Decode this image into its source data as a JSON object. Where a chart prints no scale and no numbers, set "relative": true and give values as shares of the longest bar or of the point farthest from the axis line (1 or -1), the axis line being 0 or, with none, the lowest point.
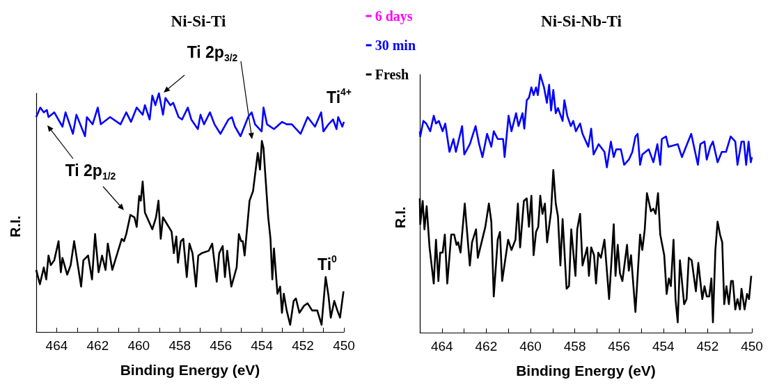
{
  "chart_data": [
    {
      "type": "line",
      "title": "Ni-Si-Ti",
      "xlabel": "Binding Energy (eV)",
      "ylabel": "R.I.",
      "relative": true,
      "tick_labels": "x",
      "legend": "top right",
      "xlim": [
        465,
        450
      ],
      "xticks": [
        {
          "value": 465,
          "label": null
        },
        464,
        {
          "value": 463,
          "label": null
        },
        462,
        {
          "value": 461,
          "label": null
        },
        460,
        {
          "value": 459,
          "label": null
        },
        458,
        {
          "value": 457,
          "label": null
        },
        456,
        {
          "value": 455,
          "label": null
        },
        454,
        {
          "value": 453,
          "label": null
        },
        452,
        {
          "value": 451,
          "label": null
        },
        450
      ],
      "annotations": [
        "Ti 2p$_{3/2}$",
        "Ti 2p$_{1/2}$",
        "Ti$^{4+}$",
        "Ti$^{0}$"
      ],
      "series": [
        {
          "name": "6 days",
          "color": "#ff00ff"
        },
        {
          "name": "30 min",
          "color": "#0000ff",
          "x": [
            465,
            464.8,
            464.63,
            464.48,
            464.4,
            464.12,
            463.72,
            463.57,
            463.21,
            463.04,
            462.62,
            462.53,
            462.25,
            462,
            461.85,
            461.4,
            460.89,
            460.61,
            460.38,
            460.1,
            459.81,
            459.7,
            459.47,
            459.34,
            459.19,
            459.02,
            458.82,
            458.7,
            458.46,
            458.32,
            458.06,
            457.89,
            457.61,
            457.44,
            457.12,
            456.99,
            456.82,
            456.53,
            456.31,
            456.02,
            455.63,
            455.46,
            455.31,
            455.04,
            454.67,
            454.5,
            454.33,
            454.01,
            453.92,
            453.75,
            453.41,
            453.02,
            452.79,
            452.54,
            452.11,
            451.77,
            451.41,
            451.11,
            451,
            450.75,
            450.53,
            450.36,
            450.28,
            450.08,
            450
          ],
          "values": [
            0.9,
            0.94,
            0.92,
            0.93,
            0.9,
            0.92,
            0.86,
            0.92,
            0.83,
            0.91,
            0.82,
            0.9,
            0.87,
            0.94,
            0.87,
            0.9,
            0.87,
            0.92,
            0.88,
            0.94,
            0.91,
            0.95,
            0.89,
            0.99,
            0.95,
            1,
            0.91,
            0.98,
            0.95,
            0.96,
            0.9,
            0.89,
            0.94,
            0.89,
            0.85,
            0.91,
            0.87,
            0.92,
            0.87,
            0.83,
            0.89,
            0.9,
            0.86,
            0.82,
            0.9,
            0.92,
            0.87,
            0.84,
            0.94,
            0.87,
            0.85,
            0.88,
            0.87,
            0.87,
            0.83,
            0.9,
            0.86,
            0.92,
            0.84,
            0.87,
            0.89,
            0.85,
            0.9,
            0.86,
            0.88
          ]
        },
        {
          "name": "Fresh",
          "color": "#000000",
          "x": [
            465,
            464.82,
            464.63,
            464.51,
            464.4,
            464.29,
            464.12,
            463.91,
            463.8,
            463.72,
            463.49,
            463.32,
            463.15,
            462.81,
            462.7,
            462.47,
            462.28,
            462.13,
            461.96,
            461.79,
            461.62,
            461.51,
            461.29,
            460.83,
            460.72,
            460.61,
            460.41,
            460.21,
            460.1,
            459.98,
            459.9,
            459.81,
            459.7,
            459.34,
            459.16,
            459.04,
            458.93,
            458.82,
            458.68,
            458.4,
            458.29,
            458.17,
            458.09,
            457.95,
            457.83,
            457.66,
            457.53,
            457.38,
            457.21,
            457.1,
            456.93,
            456.59,
            456.42,
            456.2,
            456.08,
            455.91,
            455.8,
            455.69,
            455.49,
            455.23,
            455.12,
            455.01,
            454.93,
            454.84,
            454.6,
            454.43,
            454.2,
            454.09,
            454,
            453.92,
            453.69,
            453.58,
            453.49,
            453.41,
            453.24,
            453.11,
            453.02,
            452.93,
            452.79,
            452.62,
            452.45,
            452.34,
            452.17,
            451.94,
            451.77,
            451.55,
            451.3,
            451.09,
            450.89,
            450.75,
            450.64,
            450.47,
            450.32,
            450.19,
            450.02
          ],
          "values": [
            0.26,
            0.2,
            0.27,
            0.22,
            0.32,
            0.28,
            0.3,
            0.38,
            0.25,
            0.31,
            0.24,
            0.28,
            0.38,
            0.19,
            0.3,
            0.32,
            0.22,
            0.41,
            0.25,
            0.32,
            0.26,
            0.37,
            0.26,
            0.39,
            0.38,
            0.41,
            0.49,
            0.48,
            0.44,
            0.57,
            0.55,
            0.63,
            0.5,
            0.43,
            0.48,
            0.55,
            0.39,
            0.48,
            0.46,
            0.42,
            0.33,
            0.4,
            0.29,
            0.38,
            0.39,
            0.23,
            0.37,
            0.33,
            0.19,
            0.32,
            0.33,
            0.34,
            0.37,
            0.21,
            0.33,
            0.36,
            0.23,
            0.34,
            0.19,
            0.27,
            0.41,
            0.38,
            0.38,
            0.32,
            0.55,
            0.59,
            0.75,
            0.68,
            0.8,
            0.77,
            0.48,
            0.39,
            0.22,
            0.35,
            0.16,
            0.19,
            0.08,
            0.16,
            0.09,
            0.03,
            0.13,
            0.14,
            0.08,
            0.11,
            0.12,
            0.09,
            0.09,
            0.03,
            0.23,
            0.15,
            0.06,
            0.13,
            0.09,
            0.06,
            0.17
          ]
        }
      ]
    },
    {
      "type": "line",
      "title": "Ni-Si-Nb-Ti",
      "xlabel": "Binding Energy (eV)",
      "ylabel": "R.I.",
      "relative": true,
      "tick_labels": "x",
      "xlim": [
        465,
        450
      ],
      "xticks": [
        {
          "value": 465,
          "label": null
        },
        464,
        {
          "value": 463,
          "label": null
        },
        462,
        {
          "value": 461,
          "label": null
        },
        460,
        {
          "value": 459,
          "label": null
        },
        458,
        {
          "value": 457,
          "label": null
        },
        456,
        {
          "value": 455,
          "label": null
        },
        454,
        {
          "value": 453,
          "label": null
        },
        452,
        {
          "value": 451,
          "label": null
        },
        450
      ],
      "series": [
        {
          "color": "#0000ff",
          "x": [
            465,
            464.98,
            464.84,
            464.71,
            464.53,
            464.37,
            464.27,
            464.14,
            463.97,
            463.85,
            463.66,
            463.48,
            463.37,
            463.09,
            462.99,
            462.74,
            462.48,
            462.32,
            462.17,
            461.96,
            461.77,
            461.66,
            461.48,
            461.24,
            461.17,
            460.99,
            460.86,
            460.65,
            460.54,
            460.36,
            460.28,
            460.17,
            460.07,
            459.96,
            459.86,
            459.75,
            459.67,
            459.56,
            459.39,
            459.26,
            459.16,
            459.07,
            458.97,
            458.86,
            458.76,
            458.55,
            458.47,
            458.34,
            458.18,
            458.07,
            457.95,
            457.76,
            457.65,
            457.39,
            457.26,
            457.15,
            456.92,
            456.66,
            456.55,
            456.37,
            456.24,
            456.13,
            455.92,
            455.77,
            455.56,
            455.4,
            455.26,
            455.16,
            455.05,
            454.95,
            454.66,
            454.45,
            454.27,
            454.14,
            454.07,
            453.88,
            453.77,
            453.35,
            453.16,
            452.93,
            452.74,
            452.44,
            452.33,
            452.14,
            452.04,
            451.88,
            451.76,
            451.55,
            451.36,
            451.17,
            450.96,
            450.75,
            450.65,
            450.47,
            450.36,
            450.26,
            450.15,
            450.05,
            450
          ],
          "values": [
            0.78,
            0.76,
            0.82,
            0.81,
            0.78,
            0.84,
            0.81,
            0.82,
            0.78,
            0.81,
            0.7,
            0.75,
            0.7,
            0.8,
            0.69,
            0.73,
            0.8,
            0.73,
            0.68,
            0.77,
            0.72,
            0.78,
            0.75,
            0.75,
            0.68,
            0.84,
            0.78,
            0.85,
            0.8,
            0.85,
            0.79,
            0.9,
            0.91,
            0.95,
            0.92,
            0.95,
            0.92,
            1,
            0.95,
            0.89,
            0.96,
            0.86,
            0.94,
            0.85,
            0.87,
            0.82,
            0.9,
            0.84,
            0.8,
            0.82,
            0.78,
            0.81,
            0.77,
            0.72,
            0.79,
            0.69,
            0.73,
            0.7,
            0.64,
            0.74,
            0.68,
            0.71,
            0.71,
            0.65,
            0.67,
            0.7,
            0.76,
            0.77,
            0.65,
            0.69,
            0.71,
            0.66,
            0.73,
            0.65,
            0.75,
            0.76,
            0.72,
            0.73,
            0.68,
            0.73,
            0.77,
            0.65,
            0.73,
            0.74,
            0.67,
            0.72,
            0.74,
            0.66,
            0.7,
            0.7,
            0.76,
            0.74,
            0.65,
            0.74,
            0.74,
            0.65,
            0.74,
            0.66,
            0.68
          ]
        },
        {
          "color": "#000000",
          "x": [
            465,
            464.98,
            464.87,
            464.79,
            464.69,
            464.56,
            464.37,
            464.27,
            464.16,
            464.08,
            463.97,
            463.87,
            463.76,
            463.58,
            463.45,
            463.34,
            463.27,
            463.16,
            462.97,
            462.74,
            462.64,
            462.46,
            462.38,
            462.04,
            461.88,
            461.77,
            461.66,
            461.48,
            461.38,
            461.28,
            461.01,
            460.86,
            460.68,
            460.57,
            460.47,
            460.3,
            460.17,
            460.07,
            459.96,
            459.86,
            459.75,
            459.65,
            459.56,
            459.46,
            459.35,
            459.25,
            459.07,
            458.97,
            458.86,
            458.76,
            458.65,
            458.55,
            458.37,
            458.26,
            458.16,
            457.97,
            457.89,
            457.76,
            457.65,
            457.44,
            457.36,
            457.26,
            457.13,
            457.04,
            456.94,
            456.82,
            456.66,
            456.45,
            456.24,
            456.16,
            456.06,
            455.96,
            455.85,
            455.64,
            455.56,
            455.46,
            455.26,
            455.05,
            454.95,
            454.84,
            454.74,
            454.56,
            454.45,
            454.35,
            454.24,
            454.14,
            453.96,
            453.85,
            453.75,
            453.66,
            453.54,
            453.45,
            453.35,
            453.25,
            453.06,
            452.95,
            452.85,
            452.72,
            452.53,
            452.42,
            452.24,
            452.14,
            452.04,
            451.93,
            451.83,
            451.76,
            451.65,
            451.55,
            451.44,
            451.34,
            451.25,
            451.15,
            451.04,
            450.94,
            450.86,
            450.75,
            450.65,
            450.54,
            450.47,
            450.33,
            450.22,
            450.13,
            450.03
          ],
          "values": [
            0.52,
            0.42,
            0.51,
            0.4,
            0.49,
            0.33,
            0.19,
            0.36,
            0.2,
            0.31,
            0.31,
            0.38,
            0.19,
            0.38,
            0.38,
            0.34,
            0.35,
            0.31,
            0.5,
            0.26,
            0.35,
            0.4,
            0.29,
            0.41,
            0.5,
            0.43,
            0.14,
            0.36,
            0.39,
            0.2,
            0.36,
            0.32,
            0.36,
            0.5,
            0.33,
            0.51,
            0.52,
            0.41,
            0.53,
            0.3,
            0.39,
            0.41,
            0.53,
            0.46,
            0.5,
            0.35,
            0.47,
            0.63,
            0.5,
            0.45,
            0.26,
            0.44,
            0.17,
            0.18,
            0.4,
            0.22,
            0.4,
            0.46,
            0.26,
            0.33,
            0.22,
            0.33,
            0.3,
            0.19,
            0.31,
            0.29,
            0.36,
            0.13,
            0.42,
            0.22,
            0.34,
            0.23,
            0.2,
            0.34,
            0.24,
            0.3,
            0.08,
            0.38,
            0.32,
            0.4,
            0.54,
            0.47,
            0.48,
            0.46,
            0.54,
            0.38,
            0.3,
            0.15,
            0.21,
            0.18,
            0.36,
            0.13,
            0.04,
            0.28,
            0.11,
            0.13,
            0.29,
            0.28,
            0.16,
            0.27,
            0.13,
            0.18,
            0.14,
            0.14,
            0.21,
            0.04,
            0.32,
            0.43,
            0.38,
            0.35,
            0.11,
            0.18,
            0.11,
            0.2,
            0.2,
            0.09,
            0.13,
            0.09,
            0.17,
            0.09,
            0.15,
            0.13,
            0.22
          ]
        }
      ]
    }
  ]
}
